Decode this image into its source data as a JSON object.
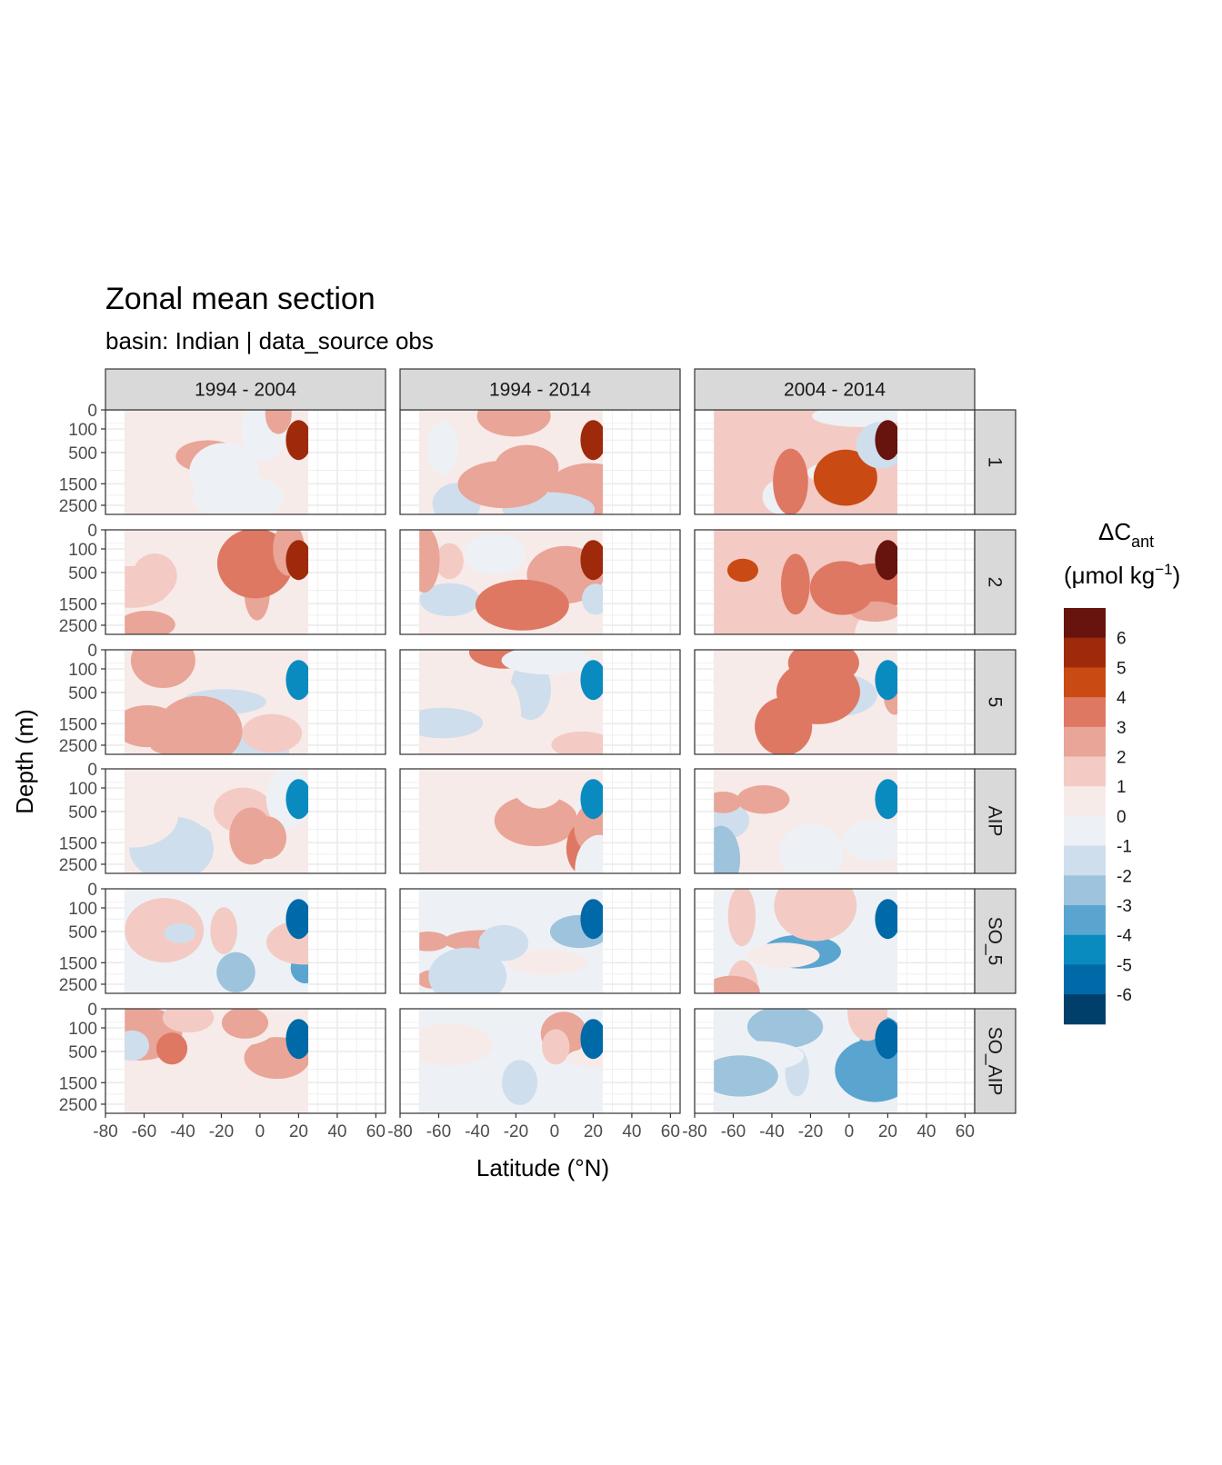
{
  "title": "Zonal mean section",
  "subtitle": "basin: Indian | data_source obs",
  "chart_data": {
    "type": "heatmap",
    "title": "Zonal mean section",
    "subtitle": "basin: Indian | data_source obs",
    "xlabel": "Latitude (°N)",
    "ylabel": "Depth (m)",
    "column_facets": [
      "1994 - 2004",
      "1994 - 2014",
      "2004 - 2014"
    ],
    "row_facets": [
      "1",
      "2",
      "5",
      "AIP",
      "SO_5",
      "SO_AIP"
    ],
    "x_ticks": [
      "-80",
      "-60",
      "-40",
      "-20",
      "0",
      "20",
      "40",
      "60"
    ],
    "x_tick_values": [
      -80,
      -60,
      -40,
      -20,
      0,
      20,
      40,
      60
    ],
    "xlim": [
      -80,
      65
    ],
    "y_ticks": [
      "0",
      "100",
      "500",
      "1500",
      "2500"
    ],
    "y_tick_values": [
      0,
      100,
      500,
      1500,
      2500
    ],
    "y_scale": "square-root, reversed",
    "ylim": [
      0,
      3000
    ],
    "data_lat_range": [
      -70,
      25
    ],
    "grid": true,
    "legend": {
      "title_main": "ΔC",
      "title_sub": "ant",
      "title_unit_prefix": "(μmol kg",
      "title_unit_sup": "−1",
      "title_unit_suffix": ")",
      "position": "right",
      "labels": [
        "6",
        "5",
        "4",
        "3",
        "2",
        "1",
        "0",
        "-1",
        "-2",
        "-3",
        "-4",
        "-5",
        "-6"
      ],
      "colors": [
        "#67130e",
        "#9e2a0b",
        "#c94a12",
        "#de7863",
        "#e9a597",
        "#f3cbc4",
        "#f7ebe9",
        "#edf1f5",
        "#cfdeec",
        "#9ec3dd",
        "#5aa5d0",
        "#0a8bc0",
        "#006aa8",
        "#003f6a"
      ]
    },
    "dominant_level_by_panel": [
      [
        0.5,
        0.5,
        1.5
      ],
      [
        0.5,
        0.5,
        1.5
      ],
      [
        0.5,
        0.5,
        0.5
      ],
      [
        0.5,
        0.5,
        0.5
      ],
      [
        -0.5,
        -0.5,
        -0.5
      ],
      [
        0.5,
        -0.5,
        -0.5
      ]
    ]
  }
}
